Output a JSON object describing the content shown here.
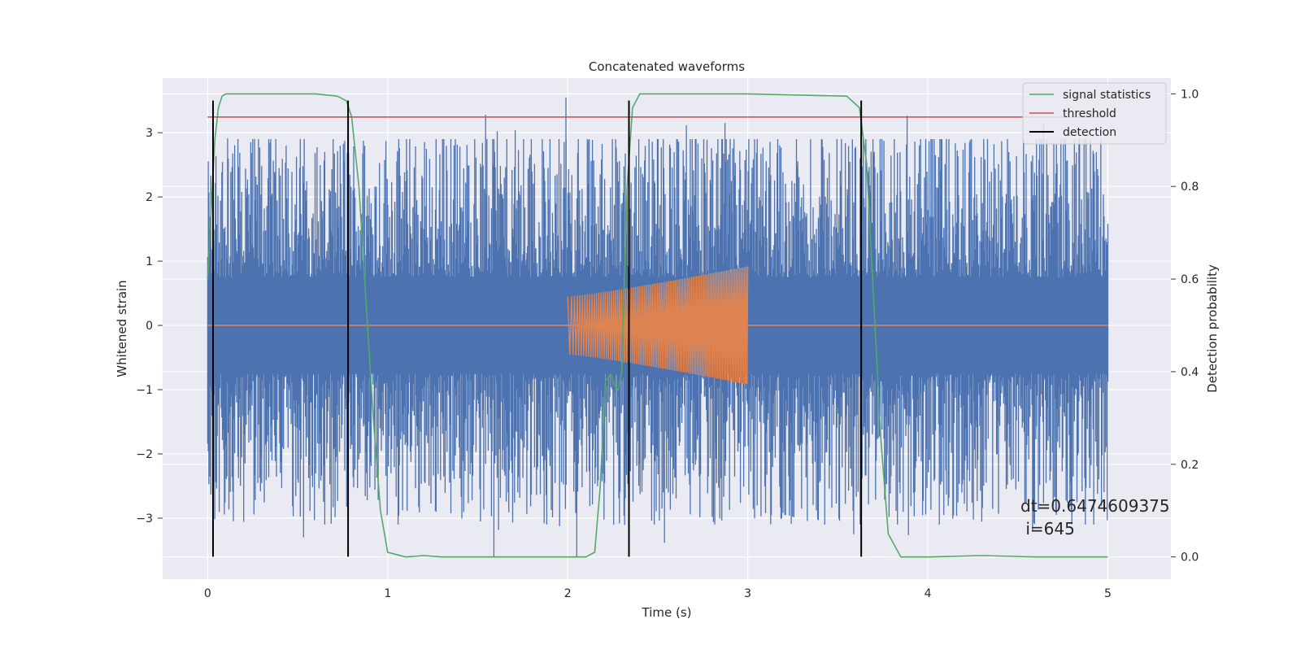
{
  "chart_data": {
    "type": "line",
    "title": "Concatenated waveforms",
    "xlabel": "Time (s)",
    "ylabel": "Whitened strain",
    "y2label": "Detection probability",
    "xlim": [
      -0.25,
      5.35
    ],
    "ylim": [
      -3.95,
      3.85
    ],
    "y2lim": [
      -0.048,
      1.034
    ],
    "xticks": [
      "0",
      "1",
      "2",
      "3",
      "4",
      "5"
    ],
    "yticks": [
      "−3",
      "−2",
      "−1",
      "0",
      "1",
      "2",
      "3"
    ],
    "y2ticks": [
      "0.0",
      "0.2",
      "0.4",
      "0.6",
      "0.8",
      "1.0"
    ],
    "grid": true,
    "legend_position": "top-right",
    "legend": [
      "signal statistics",
      "threshold",
      "detection"
    ],
    "colors": {
      "background": "#EAEAF2",
      "grid": "#FFFFFF",
      "strain": "#4C72B0",
      "injection": "#DD8452",
      "signal_statistics": "#55A868",
      "threshold": "#C44E52",
      "detection": "#000000"
    },
    "strain": {
      "x_range": [
        0,
        5
      ],
      "core_amplitude": 0.72,
      "typical_peak": 1.9,
      "max": 3.55,
      "min": -3.6
    },
    "injection": {
      "x_range": [
        2.0,
        3.0
      ],
      "amplitude_start": 0.45,
      "amplitude_end": 0.92,
      "cycles": 95
    },
    "series": [
      {
        "name": "signal statistics",
        "axis": "right",
        "x": [
          0.0,
          0.02,
          0.04,
          0.06,
          0.08,
          0.1,
          0.2,
          0.6,
          0.72,
          0.77,
          0.8,
          0.84,
          0.88,
          0.92,
          0.96,
          1.0,
          1.1,
          1.2,
          1.3,
          1.6,
          2.0,
          2.1,
          2.15,
          2.18,
          2.21,
          2.24,
          2.26,
          2.28,
          2.3,
          2.33,
          2.36,
          2.4,
          2.5,
          3.0,
          3.55,
          3.62,
          3.66,
          3.7,
          3.74,
          3.78,
          3.85,
          4.0,
          4.3,
          4.6,
          5.0
        ],
        "y": [
          0.6,
          0.75,
          0.9,
          0.97,
          0.995,
          1.0,
          1.0,
          1.0,
          0.995,
          0.985,
          0.95,
          0.8,
          0.55,
          0.3,
          0.1,
          0.01,
          0.0,
          0.003,
          0.0,
          0.0,
          0.0,
          0.0,
          0.01,
          0.15,
          0.38,
          0.395,
          0.37,
          0.36,
          0.4,
          0.8,
          0.97,
          1.0,
          1.0,
          1.0,
          0.995,
          0.97,
          0.85,
          0.55,
          0.25,
          0.05,
          0.0,
          0.0,
          0.003,
          0.0,
          0.0
        ]
      },
      {
        "name": "threshold",
        "axis": "right",
        "x": [
          0,
          5
        ],
        "y": [
          0.95,
          0.95
        ]
      },
      {
        "name": "detection",
        "axis": "left",
        "x": [
          0.03,
          0.78,
          2.34,
          3.63
        ],
        "y_range": [
          -3.6,
          3.5
        ]
      }
    ],
    "annotation": {
      "line1": "dt=0.6474609375",
      "line2": " i=645"
    }
  }
}
